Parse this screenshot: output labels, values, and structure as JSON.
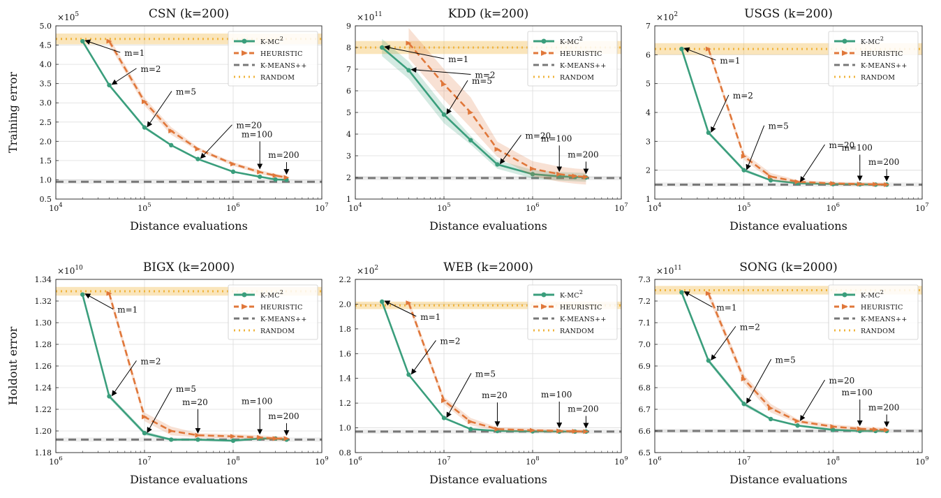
{
  "figure": {
    "x_axis_label": "Distance evaluations",
    "legend_labels": {
      "kmc2": "K-MC",
      "kmc2_sup": "2",
      "heuristic": "HEURISTIC",
      "kmeanspp": "K-MEANS++",
      "random": "RANDOM"
    },
    "colors": {
      "kmc2": "#3a9e7c",
      "heuristic": "#e0773a",
      "kmeanspp": "#777777",
      "random": "#f0b43c"
    }
  },
  "chart_data": [
    {
      "type": "line",
      "title": "CSN (k=200)",
      "ylabel": "Training error",
      "x_scale": "log",
      "xlim": [
        10000,
        10000000
      ],
      "ylim": [
        0.5,
        5.0
      ],
      "y_multiplier": "×10",
      "y_multiplier_exp": "5",
      "xticks": [
        4,
        5,
        6,
        7
      ],
      "yticks": [
        "0.5",
        "1.0",
        "1.5",
        "2.0",
        "2.5",
        "3.0",
        "3.5",
        "4.0",
        "4.5",
        "5.0"
      ],
      "series": [
        {
          "name": "K-MC2",
          "x": [
            20000,
            40000,
            100000,
            200000,
            400000,
            1000000,
            2000000,
            3000000,
            4000000
          ],
          "y": [
            4.6,
            3.46,
            2.36,
            1.9,
            1.54,
            1.21,
            1.08,
            1.01,
            1.0
          ],
          "band": 0.02
        },
        {
          "name": "HEURISTIC",
          "x": [
            40000,
            100000,
            200000,
            400000,
            1000000,
            2000000,
            3000000,
            4000000
          ],
          "y": [
            4.6,
            3.03,
            2.27,
            1.8,
            1.41,
            1.2,
            1.11,
            1.06
          ],
          "band": 0.05
        }
      ],
      "kmeanspp": 0.95,
      "random": {
        "value": 4.66,
        "band": 0.14
      },
      "annotations": [
        {
          "text": "m=1",
          "x": 20000,
          "y": 4.6
        },
        {
          "text": "m=2",
          "x": 40000,
          "y": 3.46
        },
        {
          "text": "m=5",
          "x": 100000,
          "y": 2.36
        },
        {
          "text": "m=20",
          "x": 400000,
          "y": 1.54
        },
        {
          "text": "m=100",
          "x": 2000000,
          "y": 1.2
        },
        {
          "text": "m=200",
          "x": 4000000,
          "y": 1.06
        }
      ]
    },
    {
      "type": "line",
      "title": "KDD (k=200)",
      "ylabel": "",
      "x_scale": "log",
      "xlim": [
        10000,
        10000000
      ],
      "ylim": [
        1,
        9
      ],
      "y_multiplier": "×10",
      "y_multiplier_exp": "11",
      "xticks": [
        4,
        5,
        6,
        7
      ],
      "yticks": [
        "1",
        "2",
        "3",
        "4",
        "5",
        "6",
        "7",
        "8",
        "9"
      ],
      "series": [
        {
          "name": "K-MC2",
          "x": [
            20000,
            40000,
            100000,
            200000,
            400000,
            1000000,
            2000000,
            3000000,
            4000000
          ],
          "y": [
            8.0,
            6.95,
            4.9,
            3.72,
            2.6,
            2.15,
            2.05,
            2.02,
            2.0
          ],
          "band": 0.2
        },
        {
          "name": "HEURISTIC",
          "x": [
            40000,
            100000,
            200000,
            400000,
            1000000,
            2000000,
            3000000,
            4000000
          ],
          "y": [
            8.2,
            6.3,
            5.0,
            3.3,
            2.4,
            2.15,
            2.06,
            2.02
          ],
          "band": 0.35
        }
      ],
      "kmeanspp": 1.97,
      "random": {
        "value": 8.0,
        "band": 0.3
      },
      "annotations": [
        {
          "text": "m=1",
          "x": 20000,
          "y": 8.0
        },
        {
          "text": "m=2",
          "x": 40000,
          "y": 6.95
        },
        {
          "text": "m=5",
          "x": 100000,
          "y": 4.9
        },
        {
          "text": "m=20",
          "x": 400000,
          "y": 2.6
        },
        {
          "text": "m=100",
          "x": 2000000,
          "y": 2.12
        },
        {
          "text": "m=200",
          "x": 4000000,
          "y": 2.02
        }
      ]
    },
    {
      "type": "line",
      "title": "USGS (k=200)",
      "ylabel": "",
      "x_scale": "log",
      "xlim": [
        10000,
        10000000
      ],
      "ylim": [
        1,
        7
      ],
      "y_multiplier": "×10",
      "y_multiplier_exp": "2",
      "xticks": [
        4,
        5,
        6,
        7
      ],
      "yticks": [
        "1",
        "2",
        "3",
        "4",
        "5",
        "6",
        "7"
      ],
      "series": [
        {
          "name": "K-MC2",
          "x": [
            20000,
            40000,
            100000,
            200000,
            400000,
            1000000,
            2000000,
            3000000,
            4000000
          ],
          "y": [
            6.2,
            3.3,
            2.0,
            1.65,
            1.55,
            1.52,
            1.51,
            1.5,
            1.5
          ],
          "band": 0.03
        },
        {
          "name": "HEURISTIC",
          "x": [
            40000,
            100000,
            200000,
            400000,
            1000000,
            2000000,
            3000000,
            4000000
          ],
          "y": [
            6.2,
            2.48,
            1.78,
            1.6,
            1.54,
            1.52,
            1.51,
            1.5
          ],
          "band": 0.06
        }
      ],
      "kmeanspp": 1.5,
      "random": {
        "value": 6.2,
        "band": 0.2
      },
      "annotations": [
        {
          "text": "m=1",
          "x": 20000,
          "y": 6.2
        },
        {
          "text": "m=2",
          "x": 40000,
          "y": 3.3
        },
        {
          "text": "m=5",
          "x": 100000,
          "y": 2.0
        },
        {
          "text": "m=20",
          "x": 400000,
          "y": 1.58
        },
        {
          "text": "m=100",
          "x": 2000000,
          "y": 1.52
        },
        {
          "text": "m=200",
          "x": 4000000,
          "y": 1.51
        }
      ]
    },
    {
      "type": "line",
      "title": "BIGX (k=2000)",
      "ylabel": "Holdout error",
      "x_scale": "log",
      "xlim": [
        1000000,
        1000000000
      ],
      "ylim": [
        1.18,
        1.34
      ],
      "y_multiplier": "×10",
      "y_multiplier_exp": "10",
      "xticks": [
        6,
        7,
        8,
        9
      ],
      "yticks": [
        "1.18",
        "1.20",
        "1.22",
        "1.24",
        "1.26",
        "1.28",
        "1.30",
        "1.32",
        "1.34"
      ],
      "series": [
        {
          "name": "K-MC2",
          "x": [
            2000000,
            4000000,
            10000000,
            20000000,
            40000000,
            100000000,
            200000000,
            300000000,
            400000000
          ],
          "y": [
            1.326,
            1.232,
            1.198,
            1.192,
            1.192,
            1.191,
            1.193,
            1.193,
            1.192
          ],
          "band": 0.001
        },
        {
          "name": "HEURISTIC",
          "x": [
            4000000,
            10000000,
            20000000,
            40000000,
            100000000,
            200000000,
            300000000,
            400000000
          ],
          "y": [
            1.327,
            1.213,
            1.2,
            1.196,
            1.195,
            1.194,
            1.193,
            1.193
          ],
          "band": 0.002
        }
      ],
      "kmeanspp": 1.192,
      "random": {
        "value": 1.329,
        "band": 0.004
      },
      "annotations": [
        {
          "text": "m=1",
          "x": 2000000,
          "y": 1.326
        },
        {
          "text": "m=2",
          "x": 4000000,
          "y": 1.232
        },
        {
          "text": "m=5",
          "x": 10000000,
          "y": 1.198
        },
        {
          "text": "m=20",
          "x": 40000000,
          "y": 1.195
        },
        {
          "text": "m=100",
          "x": 200000000,
          "y": 1.194
        },
        {
          "text": "m=200",
          "x": 400000000,
          "y": 1.193
        }
      ]
    },
    {
      "type": "line",
      "title": "WEB (k=2000)",
      "ylabel": "",
      "x_scale": "log",
      "xlim": [
        1000000,
        1000000000
      ],
      "ylim": [
        0.8,
        2.2
      ],
      "y_multiplier": "×10",
      "y_multiplier_exp": "2",
      "xticks": [
        6,
        7,
        8,
        9
      ],
      "yticks": [
        "0.8",
        "1.0",
        "1.2",
        "1.4",
        "1.6",
        "1.8",
        "2.0",
        "2.2"
      ],
      "series": [
        {
          "name": "K-MC2",
          "x": [
            2000000,
            4000000,
            10000000,
            20000000,
            40000000,
            100000000,
            200000000,
            300000000,
            400000000
          ],
          "y": [
            2.02,
            1.43,
            1.08,
            0.99,
            0.975,
            0.972,
            0.97,
            0.97,
            0.97
          ],
          "band": 0.005
        },
        {
          "name": "HEURISTIC",
          "x": [
            4000000,
            10000000,
            20000000,
            40000000,
            100000000,
            200000000,
            300000000,
            400000000
          ],
          "y": [
            2.01,
            1.22,
            1.05,
            0.99,
            0.98,
            0.975,
            0.972,
            0.97
          ],
          "band": 0.015
        }
      ],
      "kmeanspp": 0.97,
      "random": {
        "value": 1.99,
        "band": 0.03
      },
      "annotations": [
        {
          "text": "m=1",
          "x": 2000000,
          "y": 2.02
        },
        {
          "text": "m=2",
          "x": 4000000,
          "y": 1.43
        },
        {
          "text": "m=5",
          "x": 10000000,
          "y": 1.08
        },
        {
          "text": "m=20",
          "x": 40000000,
          "y": 0.985
        },
        {
          "text": "m=100",
          "x": 200000000,
          "y": 0.975
        },
        {
          "text": "m=200",
          "x": 400000000,
          "y": 0.972
        }
      ]
    },
    {
      "type": "line",
      "title": "SONG (k=2000)",
      "ylabel": "",
      "x_scale": "log",
      "xlim": [
        1000000,
        1000000000
      ],
      "ylim": [
        6.5,
        7.3
      ],
      "y_multiplier": "×10",
      "y_multiplier_exp": "11",
      "xticks": [
        6,
        7,
        8,
        9
      ],
      "yticks": [
        "6.5",
        "6.6",
        "6.7",
        "6.8",
        "6.9",
        "7.0",
        "7.1",
        "7.2",
        "7.3"
      ],
      "series": [
        {
          "name": "K-MC2",
          "x": [
            2000000,
            4000000,
            10000000,
            20000000,
            40000000,
            100000000,
            200000000,
            300000000,
            400000000
          ],
          "y": [
            7.24,
            6.925,
            6.725,
            6.655,
            6.625,
            6.605,
            6.6,
            6.6,
            6.6
          ],
          "band": 0.005
        },
        {
          "name": "HEURISTIC",
          "x": [
            4000000,
            10000000,
            20000000,
            40000000,
            100000000,
            200000000,
            300000000,
            400000000
          ],
          "y": [
            7.235,
            6.84,
            6.705,
            6.645,
            6.62,
            6.61,
            6.607,
            6.605
          ],
          "band": 0.01
        }
      ],
      "kmeanspp": 6.6,
      "random": {
        "value": 7.25,
        "band": 0.02
      },
      "annotations": [
        {
          "text": "m=1",
          "x": 2000000,
          "y": 7.24
        },
        {
          "text": "m=2",
          "x": 4000000,
          "y": 6.925
        },
        {
          "text": "m=5",
          "x": 10000000,
          "y": 6.725
        },
        {
          "text": "m=20",
          "x": 40000000,
          "y": 6.645
        },
        {
          "text": "m=100",
          "x": 200000000,
          "y": 6.61
        },
        {
          "text": "m=200",
          "x": 400000000,
          "y": 6.605
        }
      ]
    }
  ]
}
